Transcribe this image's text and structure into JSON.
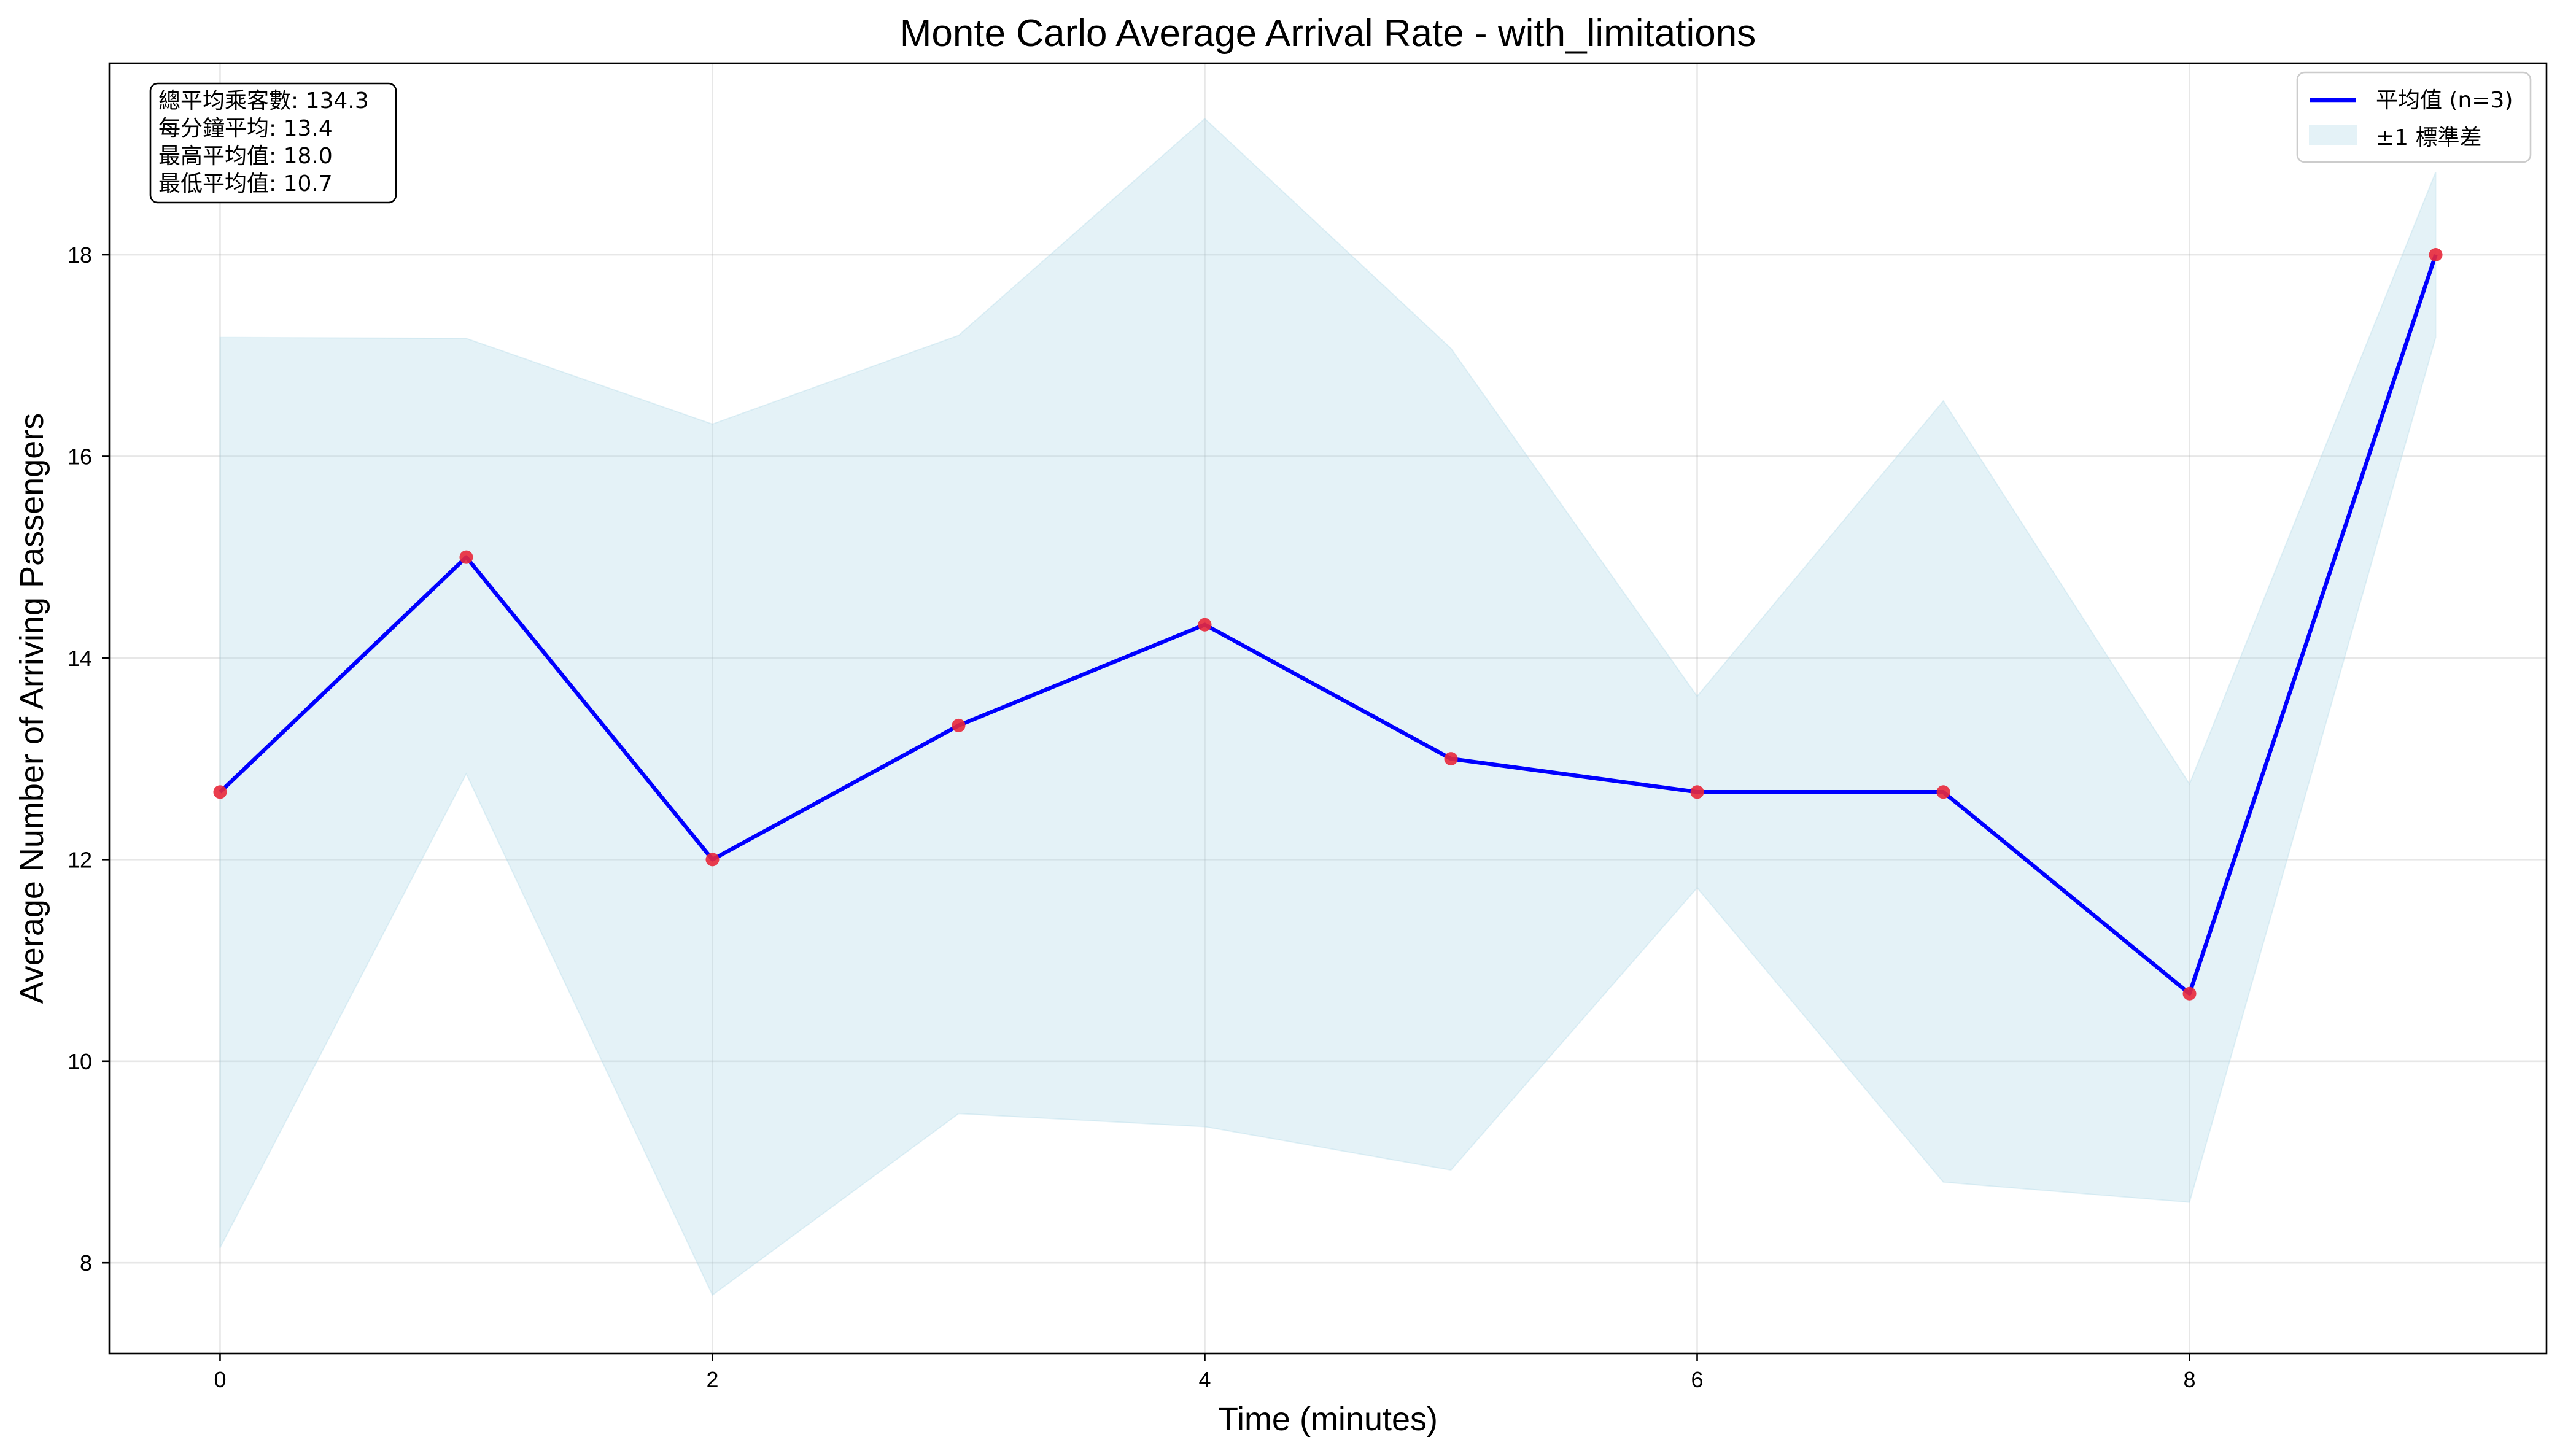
{
  "chart_data": {
    "type": "line",
    "title": "Monte Carlo Average Arrival Rate - with_limitations",
    "xlabel": "Time (minutes)",
    "ylabel": "Average Number of Arriving Passengers",
    "x": [
      0,
      1,
      2,
      3,
      4,
      5,
      6,
      7,
      8,
      9
    ],
    "series": [
      {
        "name": "平均值 (n=3)",
        "values": [
          12.67,
          15.0,
          12.0,
          13.33,
          14.33,
          13.0,
          12.67,
          12.67,
          10.67,
          18.0
        ],
        "color": "#0000ff",
        "marker_color": "#e8283a"
      }
    ],
    "band": {
      "name": "±1 標準差",
      "lower": [
        8.15,
        12.85,
        7.68,
        9.48,
        9.35,
        8.92,
        11.72,
        8.8,
        8.6,
        17.18
      ],
      "upper": [
        17.18,
        17.17,
        16.32,
        17.2,
        19.35,
        17.07,
        13.62,
        16.55,
        12.75,
        18.82
      ],
      "color": "#add8e6",
      "opacity": 0.33
    },
    "xlim": [
      -0.45,
      9.45
    ],
    "ylim": [
      7.1,
      19.9
    ],
    "xticks": [
      0,
      2,
      4,
      6,
      8
    ],
    "yticks": [
      8,
      10,
      12,
      14,
      16,
      18
    ],
    "grid": true,
    "legend_position": "top-right",
    "stats_box": {
      "position": "top-left",
      "lines": [
        "總平均乘客數: 134.3",
        "每分鐘平均: 13.4",
        "最高平均值: 18.0",
        "最低平均值: 10.7"
      ]
    }
  }
}
